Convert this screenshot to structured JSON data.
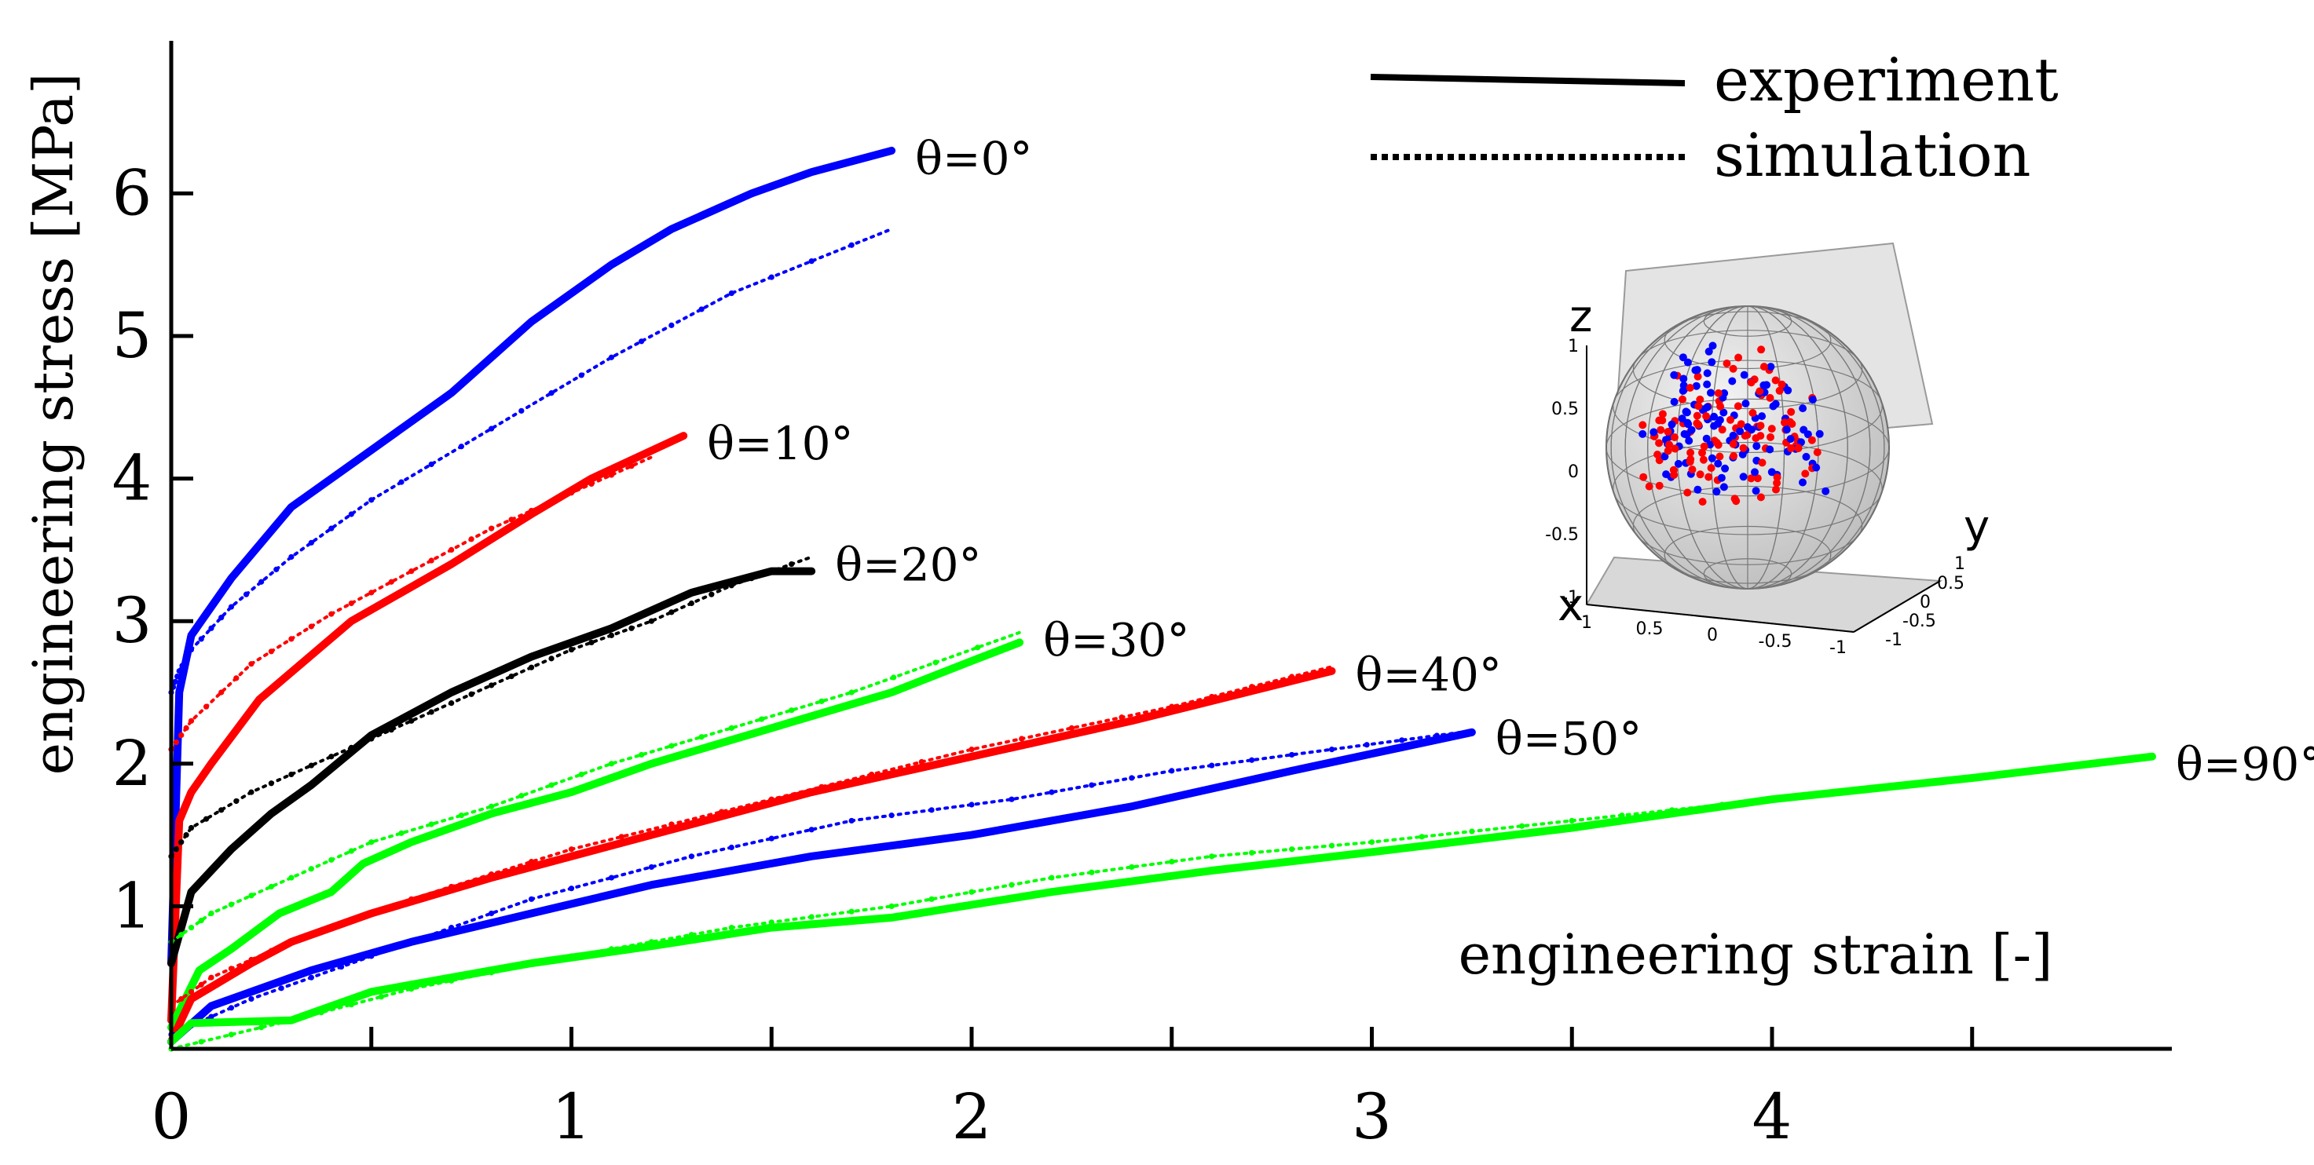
{
  "chart_data": {
    "type": "line",
    "xlabel": "engineering strain [-]",
    "ylabel": "engineering stress [MPa]",
    "xlim": [
      0,
      5
    ],
    "ylim": [
      0,
      7
    ],
    "x_ticks": [
      0,
      1,
      2,
      3,
      4
    ],
    "y_ticks": [
      1,
      2,
      3,
      4,
      5,
      6
    ],
    "grid": false,
    "legend": {
      "position": "top-right",
      "entries": [
        {
          "label": "experiment",
          "style": "solid"
        },
        {
          "label": "simulation",
          "style": "dotted"
        }
      ]
    },
    "series": [
      {
        "name": "θ=0°",
        "color": "#0000ff",
        "experiment": {
          "x": [
            0,
            0.02,
            0.05,
            0.15,
            0.3,
            0.5,
            0.7,
            0.9,
            1.1,
            1.25,
            1.45,
            1.6,
            1.8
          ],
          "y": [
            0.6,
            2.5,
            2.9,
            3.3,
            3.8,
            4.2,
            4.6,
            5.1,
            5.5,
            5.75,
            6.0,
            6.15,
            6.3
          ]
        },
        "simulation": {
          "x": [
            0,
            0.02,
            0.05,
            0.15,
            0.3,
            0.5,
            0.8,
            1.1,
            1.4,
            1.8
          ],
          "y": [
            2.5,
            2.65,
            2.8,
            3.1,
            3.45,
            3.85,
            4.35,
            4.85,
            5.3,
            5.75
          ]
        }
      },
      {
        "name": "θ=10°",
        "color": "#ff0000",
        "experiment": {
          "x": [
            0,
            0.02,
            0.05,
            0.1,
            0.22,
            0.45,
            0.7,
            0.9,
            1.05,
            1.28
          ],
          "y": [
            0.2,
            1.6,
            1.8,
            2.0,
            2.45,
            3.0,
            3.4,
            3.75,
            4.0,
            4.3
          ]
        },
        "simulation": {
          "x": [
            0,
            0.05,
            0.2,
            0.4,
            0.6,
            0.8,
            1.0,
            1.2
          ],
          "y": [
            2.1,
            2.3,
            2.7,
            3.05,
            3.35,
            3.65,
            3.9,
            4.15
          ]
        }
      },
      {
        "name": "θ=20°",
        "color": "#000000",
        "experiment": {
          "x": [
            0,
            0.05,
            0.15,
            0.25,
            0.35,
            0.5,
            0.7,
            0.9,
            1.1,
            1.3,
            1.5,
            1.6
          ],
          "y": [
            0.6,
            1.1,
            1.4,
            1.65,
            1.85,
            2.2,
            2.5,
            2.75,
            2.95,
            3.2,
            3.35,
            3.35
          ]
        },
        "simulation": {
          "x": [
            0,
            0.05,
            0.2,
            0.4,
            0.6,
            0.8,
            1.0,
            1.2,
            1.4,
            1.6
          ],
          "y": [
            1.35,
            1.55,
            1.8,
            2.05,
            2.3,
            2.55,
            2.8,
            3.0,
            3.25,
            3.45
          ]
        }
      },
      {
        "name": "θ=30°",
        "color": "#00ff00",
        "experiment": {
          "x": [
            0,
            0.07,
            0.15,
            0.27,
            0.4,
            0.48,
            0.6,
            0.8,
            1.0,
            1.2,
            1.5,
            1.8,
            2.0,
            2.12
          ],
          "y": [
            0.15,
            0.55,
            0.7,
            0.95,
            1.1,
            1.3,
            1.45,
            1.65,
            1.8,
            2.0,
            2.25,
            2.5,
            2.72,
            2.85
          ]
        },
        "simulation": {
          "x": [
            0,
            0.1,
            0.3,
            0.5,
            0.8,
            1.1,
            1.4,
            1.7,
            2.12
          ],
          "y": [
            0.75,
            0.95,
            1.2,
            1.45,
            1.7,
            2.0,
            2.25,
            2.5,
            2.92
          ]
        }
      },
      {
        "name": "θ=40°",
        "color": "#ff0000",
        "experiment": {
          "x": [
            0,
            0.05,
            0.2,
            0.3,
            0.5,
            0.8,
            1.2,
            1.6,
            2.0,
            2.4,
            2.9
          ],
          "y": [
            0.05,
            0.35,
            0.6,
            0.75,
            0.95,
            1.2,
            1.5,
            1.8,
            2.05,
            2.3,
            2.65
          ]
        },
        "simulation": {
          "x": [
            0,
            0.1,
            0.3,
            0.6,
            1.0,
            1.5,
            2.0,
            2.5,
            2.9
          ],
          "y": [
            0.3,
            0.5,
            0.75,
            1.05,
            1.4,
            1.75,
            2.1,
            2.4,
            2.68
          ]
        }
      },
      {
        "name": "θ=50°",
        "color": "#0000ff",
        "experiment": {
          "x": [
            0,
            0.1,
            0.35,
            0.6,
            0.9,
            1.2,
            1.6,
            2.0,
            2.4,
            2.8,
            3.25
          ],
          "y": [
            0.05,
            0.3,
            0.55,
            0.75,
            0.95,
            1.15,
            1.35,
            1.5,
            1.7,
            1.95,
            2.22
          ]
        },
        "simulation": {
          "x": [
            0,
            0.2,
            0.5,
            0.9,
            1.3,
            1.7,
            2.1,
            2.5,
            2.9,
            3.25
          ],
          "y": [
            0.1,
            0.35,
            0.65,
            1.05,
            1.35,
            1.6,
            1.75,
            1.95,
            2.1,
            2.23
          ]
        }
      },
      {
        "name": "θ=90°",
        "color": "#00ff00",
        "experiment": {
          "x": [
            0,
            0.05,
            0.3,
            0.5,
            0.9,
            1.2,
            1.5,
            1.8,
            2.2,
            2.6,
            3.0,
            3.5,
            4.0,
            4.5,
            4.95
          ],
          "y": [
            0.05,
            0.18,
            0.2,
            0.4,
            0.6,
            0.72,
            0.85,
            0.92,
            1.1,
            1.25,
            1.38,
            1.55,
            1.75,
            1.9,
            2.05
          ]
        },
        "simulation": {
          "x": [
            0,
            0.3,
            0.6,
            1.0,
            1.4,
            1.8,
            2.2,
            2.6,
            3.0,
            3.5,
            4.0,
            4.5,
            4.95
          ],
          "y": [
            0.0,
            0.2,
            0.42,
            0.65,
            0.85,
            1.0,
            1.2,
            1.35,
            1.45,
            1.6,
            1.75,
            1.9,
            2.05
          ]
        }
      }
    ],
    "inset": {
      "type": "scatter3d-sphere",
      "axis_labels": {
        "x": "x",
        "y": "y",
        "z": "z"
      },
      "z_ticks": [
        "1",
        "0.5",
        "0",
        "-0.5",
        "-1"
      ],
      "x_ticks": [
        "1",
        "0.5",
        "0",
        "-0.5",
        "-1"
      ],
      "y_ticks": [
        "1",
        "0.5",
        "0",
        "-0.5",
        "-1"
      ],
      "point_colors": [
        "#ff0000",
        "#0000ff"
      ]
    }
  }
}
